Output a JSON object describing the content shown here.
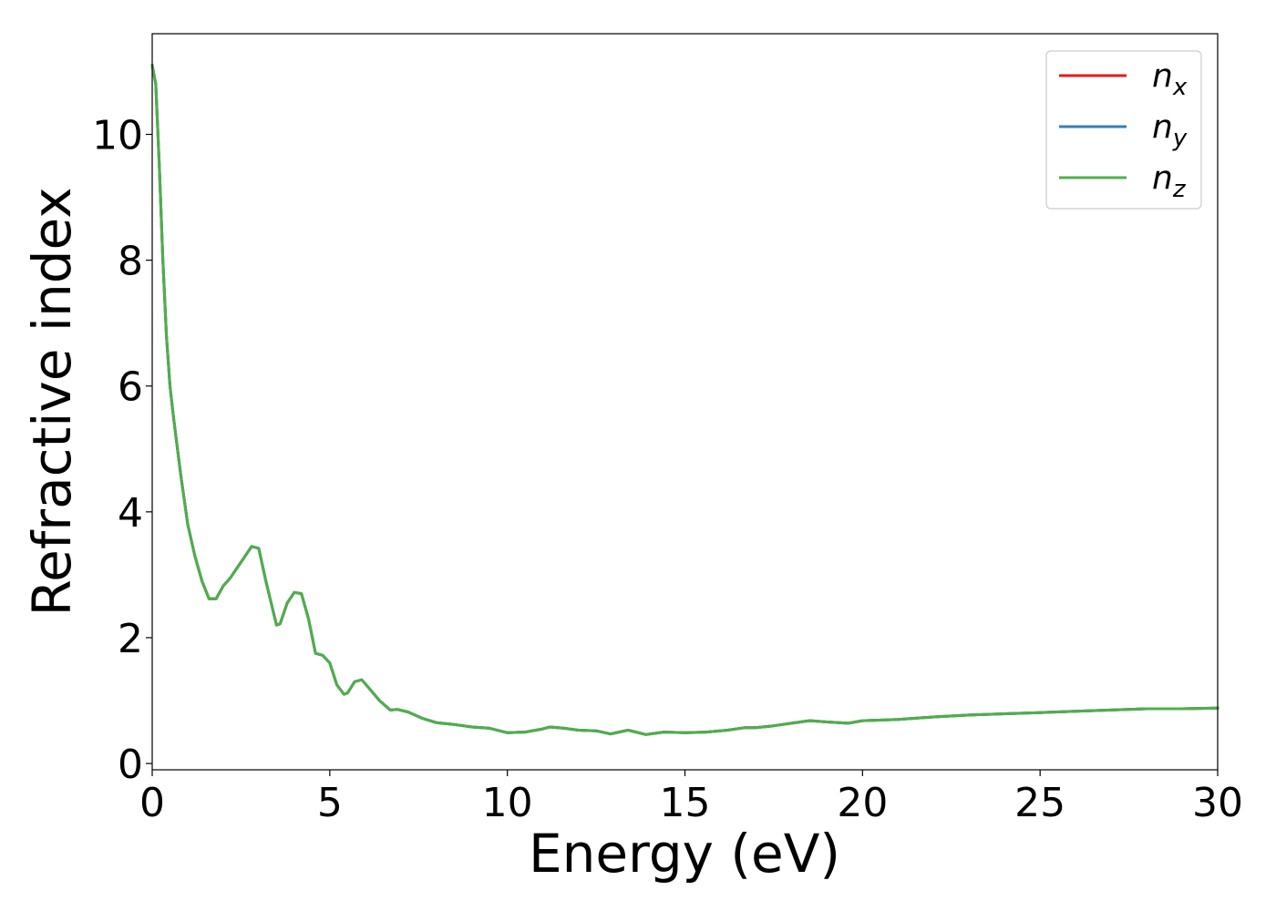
{
  "chart_data": {
    "type": "line",
    "xlabel": "Energy (eV)",
    "ylabel": "Refractive index",
    "xlim": [
      0,
      30
    ],
    "ylim": [
      -0.1,
      11.6
    ],
    "xticks": [
      0,
      5,
      10,
      15,
      20,
      25,
      30
    ],
    "yticks": [
      0,
      2,
      4,
      6,
      8,
      10
    ],
    "grid": false,
    "legend_position": "top-right",
    "series": [
      {
        "name": "n_x",
        "label_base": "n",
        "label_sub": "x",
        "color": "#e41a1c",
        "x": [
          0,
          0.1,
          0.2,
          0.3,
          0.4,
          0.5,
          0.6,
          0.8,
          1.0,
          1.2,
          1.4,
          1.6,
          1.8,
          1.9,
          2.0,
          2.2,
          2.5,
          2.8,
          3.0,
          3.2,
          3.5,
          3.6,
          3.8,
          4.0,
          4.2,
          4.4,
          4.6,
          4.8,
          5.0,
          5.2,
          5.4,
          5.5,
          5.7,
          5.9,
          6.1,
          6.4,
          6.7,
          6.9,
          7.2,
          7.6,
          8.0,
          8.5,
          9.0,
          9.5,
          10.0,
          10.5,
          11.0,
          11.2,
          11.6,
          12.0,
          12.5,
          12.9,
          13.4,
          13.9,
          14.4,
          15.0,
          15.6,
          16.2,
          16.7,
          17.0,
          17.5,
          18.0,
          18.5,
          19.0,
          19.6,
          20.0,
          21.0,
          22.0,
          23.0,
          24.0,
          25.0,
          26.0,
          27.0,
          28.0,
          29.0,
          30.0
        ],
        "y": [
          11.1,
          10.8,
          9.5,
          8.0,
          6.8,
          6.0,
          5.5,
          4.6,
          3.8,
          3.3,
          2.9,
          2.62,
          2.62,
          2.72,
          2.82,
          2.95,
          3.2,
          3.45,
          3.42,
          2.9,
          2.2,
          2.22,
          2.55,
          2.72,
          2.7,
          2.3,
          1.75,
          1.72,
          1.6,
          1.25,
          1.1,
          1.12,
          1.3,
          1.33,
          1.2,
          1.0,
          0.85,
          0.86,
          0.82,
          0.72,
          0.65,
          0.62,
          0.58,
          0.56,
          0.49,
          0.5,
          0.55,
          0.58,
          0.56,
          0.53,
          0.52,
          0.47,
          0.53,
          0.46,
          0.5,
          0.49,
          0.5,
          0.53,
          0.57,
          0.57,
          0.6,
          0.64,
          0.68,
          0.66,
          0.64,
          0.68,
          0.7,
          0.74,
          0.77,
          0.79,
          0.81,
          0.83,
          0.85,
          0.87,
          0.87,
          0.88
        ]
      },
      {
        "name": "n_y",
        "label_base": "n",
        "label_sub": "y",
        "color": "#377eb8",
        "x": [
          0,
          0.1,
          0.2,
          0.3,
          0.4,
          0.5,
          0.6,
          0.8,
          1.0,
          1.2,
          1.4,
          1.6,
          1.8,
          1.9,
          2.0,
          2.2,
          2.5,
          2.8,
          3.0,
          3.2,
          3.5,
          3.6,
          3.8,
          4.0,
          4.2,
          4.4,
          4.6,
          4.8,
          5.0,
          5.2,
          5.4,
          5.5,
          5.7,
          5.9,
          6.1,
          6.4,
          6.7,
          6.9,
          7.2,
          7.6,
          8.0,
          8.5,
          9.0,
          9.5,
          10.0,
          10.5,
          11.0,
          11.2,
          11.6,
          12.0,
          12.5,
          12.9,
          13.4,
          13.9,
          14.4,
          15.0,
          15.6,
          16.2,
          16.7,
          17.0,
          17.5,
          18.0,
          18.5,
          19.0,
          19.6,
          20.0,
          21.0,
          22.0,
          23.0,
          24.0,
          25.0,
          26.0,
          27.0,
          28.0,
          29.0,
          30.0
        ],
        "y": [
          11.1,
          10.8,
          9.5,
          8.0,
          6.8,
          6.0,
          5.5,
          4.6,
          3.8,
          3.3,
          2.9,
          2.62,
          2.62,
          2.72,
          2.82,
          2.95,
          3.2,
          3.45,
          3.42,
          2.9,
          2.2,
          2.22,
          2.55,
          2.72,
          2.7,
          2.3,
          1.75,
          1.72,
          1.6,
          1.25,
          1.1,
          1.12,
          1.3,
          1.33,
          1.2,
          1.0,
          0.85,
          0.86,
          0.82,
          0.72,
          0.65,
          0.62,
          0.58,
          0.56,
          0.49,
          0.5,
          0.55,
          0.58,
          0.56,
          0.53,
          0.52,
          0.47,
          0.53,
          0.46,
          0.5,
          0.49,
          0.5,
          0.53,
          0.57,
          0.57,
          0.6,
          0.64,
          0.68,
          0.66,
          0.64,
          0.68,
          0.7,
          0.74,
          0.77,
          0.79,
          0.81,
          0.83,
          0.85,
          0.87,
          0.87,
          0.88
        ]
      },
      {
        "name": "n_z",
        "label_base": "n",
        "label_sub": "z",
        "color": "#4daf4a",
        "x": [
          0,
          0.1,
          0.2,
          0.3,
          0.4,
          0.5,
          0.6,
          0.8,
          1.0,
          1.2,
          1.4,
          1.6,
          1.8,
          1.9,
          2.0,
          2.2,
          2.5,
          2.8,
          3.0,
          3.2,
          3.5,
          3.6,
          3.8,
          4.0,
          4.2,
          4.4,
          4.6,
          4.8,
          5.0,
          5.2,
          5.4,
          5.5,
          5.7,
          5.9,
          6.1,
          6.4,
          6.7,
          6.9,
          7.2,
          7.6,
          8.0,
          8.5,
          9.0,
          9.5,
          10.0,
          10.5,
          11.0,
          11.2,
          11.6,
          12.0,
          12.5,
          12.9,
          13.4,
          13.9,
          14.4,
          15.0,
          15.6,
          16.2,
          16.7,
          17.0,
          17.5,
          18.0,
          18.5,
          19.0,
          19.6,
          20.0,
          21.0,
          22.0,
          23.0,
          24.0,
          25.0,
          26.0,
          27.0,
          28.0,
          29.0,
          30.0
        ],
        "y": [
          11.1,
          10.8,
          9.5,
          8.0,
          6.8,
          6.0,
          5.5,
          4.6,
          3.8,
          3.3,
          2.9,
          2.62,
          2.62,
          2.72,
          2.82,
          2.95,
          3.2,
          3.45,
          3.42,
          2.9,
          2.2,
          2.22,
          2.55,
          2.72,
          2.7,
          2.3,
          1.75,
          1.72,
          1.6,
          1.25,
          1.1,
          1.12,
          1.3,
          1.33,
          1.2,
          1.0,
          0.85,
          0.86,
          0.82,
          0.72,
          0.65,
          0.62,
          0.58,
          0.56,
          0.49,
          0.5,
          0.55,
          0.58,
          0.56,
          0.53,
          0.52,
          0.47,
          0.53,
          0.46,
          0.5,
          0.49,
          0.5,
          0.53,
          0.57,
          0.57,
          0.6,
          0.64,
          0.68,
          0.66,
          0.64,
          0.68,
          0.7,
          0.74,
          0.77,
          0.79,
          0.81,
          0.83,
          0.85,
          0.87,
          0.87,
          0.88
        ]
      }
    ]
  }
}
